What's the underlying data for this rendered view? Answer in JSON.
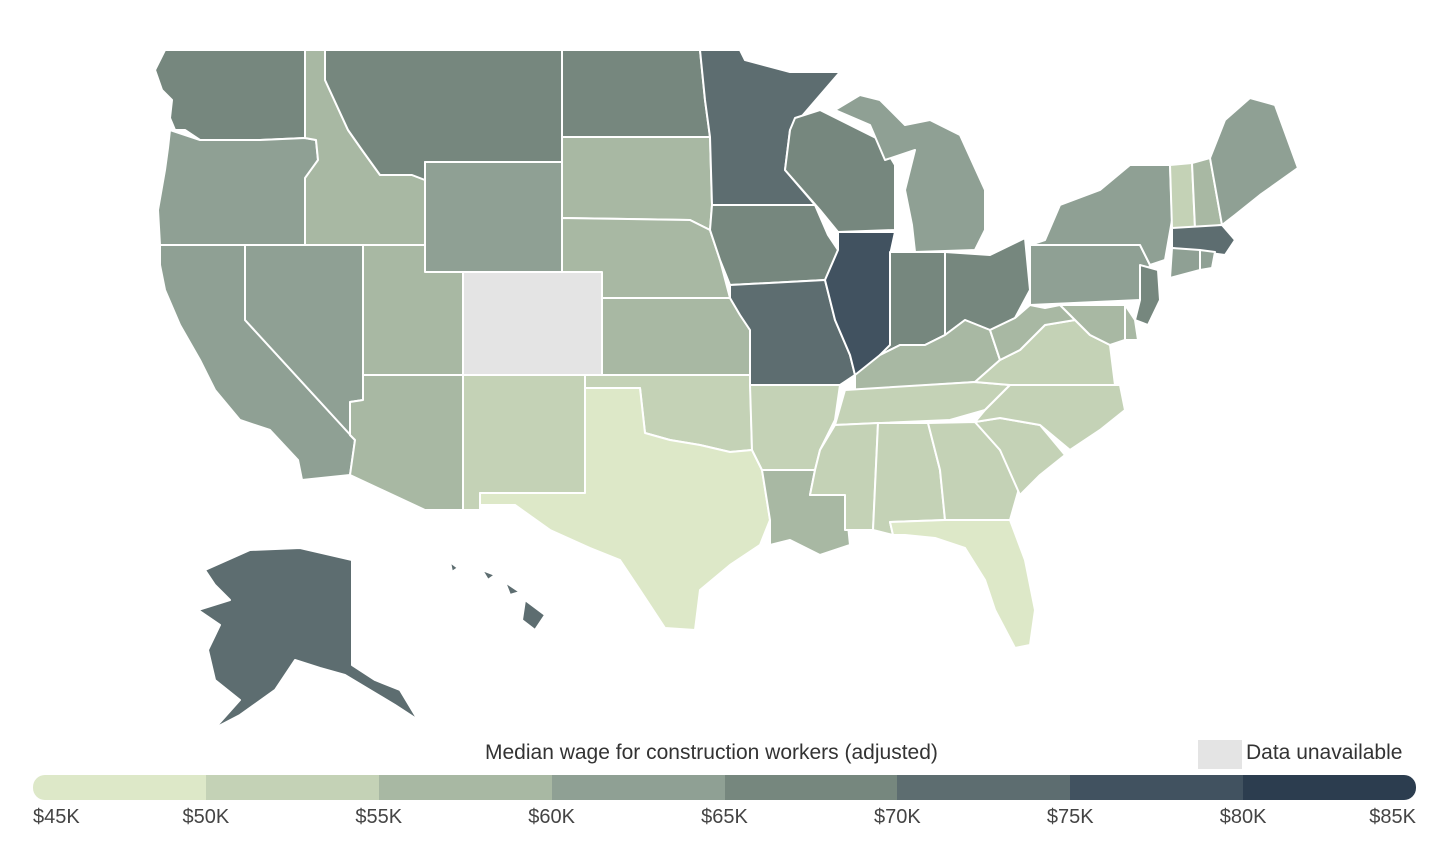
{
  "legend": {
    "title": "Median wage for construction workers (adjusted)",
    "unavailable_label": "Data unavailable",
    "unavailable_color": "#e4e4e4",
    "bins": [
      {
        "min": 45,
        "max": 50,
        "color": "#dde8c8"
      },
      {
        "min": 50,
        "max": 55,
        "color": "#c4d2b6"
      },
      {
        "min": 55,
        "max": 60,
        "color": "#a8b8a3"
      },
      {
        "min": 60,
        "max": 65,
        "color": "#8fa094"
      },
      {
        "min": 65,
        "max": 70,
        "color": "#76877e"
      },
      {
        "min": 70,
        "max": 75,
        "color": "#5d6d70"
      },
      {
        "min": 75,
        "max": 80,
        "color": "#415260"
      },
      {
        "min": 80,
        "max": 85,
        "color": "#2c3d4f"
      }
    ],
    "ticks": [
      "$45K",
      "$50K",
      "$55K",
      "$60K",
      "$65K",
      "$70K",
      "$75K",
      "$80K",
      "$85K"
    ]
  },
  "states": {
    "WA": {
      "bin": 4
    },
    "OR": {
      "bin": 3
    },
    "CA": {
      "bin": 3
    },
    "NV": {
      "bin": 3
    },
    "ID": {
      "bin": 2
    },
    "MT": {
      "bin": 4
    },
    "WY": {
      "bin": 3
    },
    "UT": {
      "bin": 2
    },
    "CO": {
      "bin": null
    },
    "AZ": {
      "bin": 2
    },
    "NM": {
      "bin": 1
    },
    "ND": {
      "bin": 4
    },
    "SD": {
      "bin": 2
    },
    "NE": {
      "bin": 2
    },
    "KS": {
      "bin": 2
    },
    "OK": {
      "bin": 1
    },
    "TX": {
      "bin": 0
    },
    "MN": {
      "bin": 5
    },
    "IA": {
      "bin": 4
    },
    "MO": {
      "bin": 5
    },
    "AR": {
      "bin": 1
    },
    "LA": {
      "bin": 2
    },
    "WI": {
      "bin": 4
    },
    "IL": {
      "bin": 6
    },
    "MI": {
      "bin": 3
    },
    "IN": {
      "bin": 4
    },
    "OH": {
      "bin": 4
    },
    "KY": {
      "bin": 2
    },
    "TN": {
      "bin": 1
    },
    "MS": {
      "bin": 1
    },
    "AL": {
      "bin": 1
    },
    "GA": {
      "bin": 1
    },
    "FL": {
      "bin": 0
    },
    "SC": {
      "bin": 1
    },
    "NC": {
      "bin": 1
    },
    "VA": {
      "bin": 1
    },
    "WV": {
      "bin": 2
    },
    "PA": {
      "bin": 3
    },
    "NY": {
      "bin": 3
    },
    "VT": {
      "bin": 1
    },
    "NH": {
      "bin": 2
    },
    "ME": {
      "bin": 3
    },
    "MA": {
      "bin": 5
    },
    "RI": {
      "bin": 3
    },
    "CT": {
      "bin": 3
    },
    "NJ": {
      "bin": 4
    },
    "DE": {
      "bin": 2
    },
    "MD": {
      "bin": 2
    },
    "AK": {
      "bin": 5
    },
    "HI": {
      "bin": 5
    }
  }
}
